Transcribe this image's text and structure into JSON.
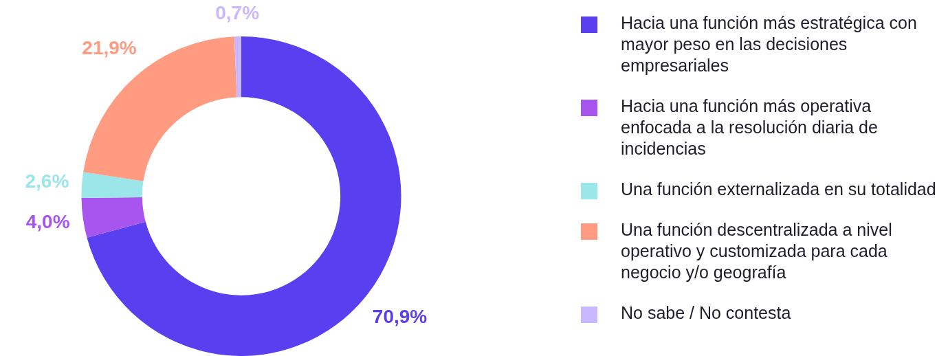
{
  "chart_data": {
    "type": "donut",
    "categories": [
      "Hacia una función más estratégica con mayor peso en las decisiones empresariales",
      "Hacia una función más operativa enfocada a la resolución diaria de incidencias",
      "Una función externalizada en su totalidad",
      "Una función descentralizada a nivel operativo y customizada para cada negocio y/o geografía",
      "No sabe / No contesta"
    ],
    "values": [
      70.9,
      4.0,
      2.6,
      21.9,
      0.7
    ],
    "value_labels": [
      "70,9%",
      "4,0%",
      "2,6%",
      "21,9%",
      "0,7%"
    ],
    "colors": [
      "#583ff0",
      "#a855f0",
      "#9be6e8",
      "#ff9b80",
      "#c9b8ff"
    ],
    "legend": "right"
  }
}
